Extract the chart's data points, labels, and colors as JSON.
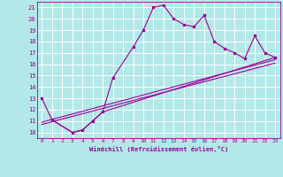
{
  "xlabel": "Windchill (Refroidissement éolien,°C)",
  "bg_color": "#b3e8e8",
  "grid_color": "#ffffff",
  "line_color": "#990099",
  "xlim": [
    -0.5,
    23.5
  ],
  "ylim": [
    9.5,
    21.5
  ],
  "xticks": [
    0,
    1,
    2,
    3,
    4,
    5,
    6,
    7,
    8,
    9,
    10,
    11,
    12,
    13,
    14,
    15,
    16,
    17,
    18,
    19,
    20,
    21,
    22,
    23
  ],
  "yticks": [
    10,
    11,
    12,
    13,
    14,
    15,
    16,
    17,
    18,
    19,
    20,
    21
  ],
  "series1_x": [
    0,
    1,
    3,
    4,
    5,
    6,
    7,
    9,
    10,
    11,
    12,
    13,
    14,
    15,
    16,
    17,
    18,
    19,
    20,
    21,
    22,
    23
  ],
  "series1_y": [
    13.0,
    11.1,
    10.0,
    10.2,
    11.0,
    11.8,
    14.8,
    17.5,
    19.0,
    21.0,
    21.2,
    20.0,
    19.5,
    19.3,
    20.3,
    18.0,
    17.4,
    17.0,
    16.5,
    18.5,
    17.0,
    16.6
  ],
  "series2_x": [
    1,
    3,
    4,
    5,
    6,
    23
  ],
  "series2_y": [
    11.1,
    10.0,
    10.2,
    11.0,
    11.8,
    16.6
  ],
  "series3_x": [
    0,
    23
  ],
  "series3_y": [
    10.9,
    16.4
  ],
  "series4_x": [
    0,
    23
  ],
  "series4_y": [
    10.7,
    16.1
  ]
}
